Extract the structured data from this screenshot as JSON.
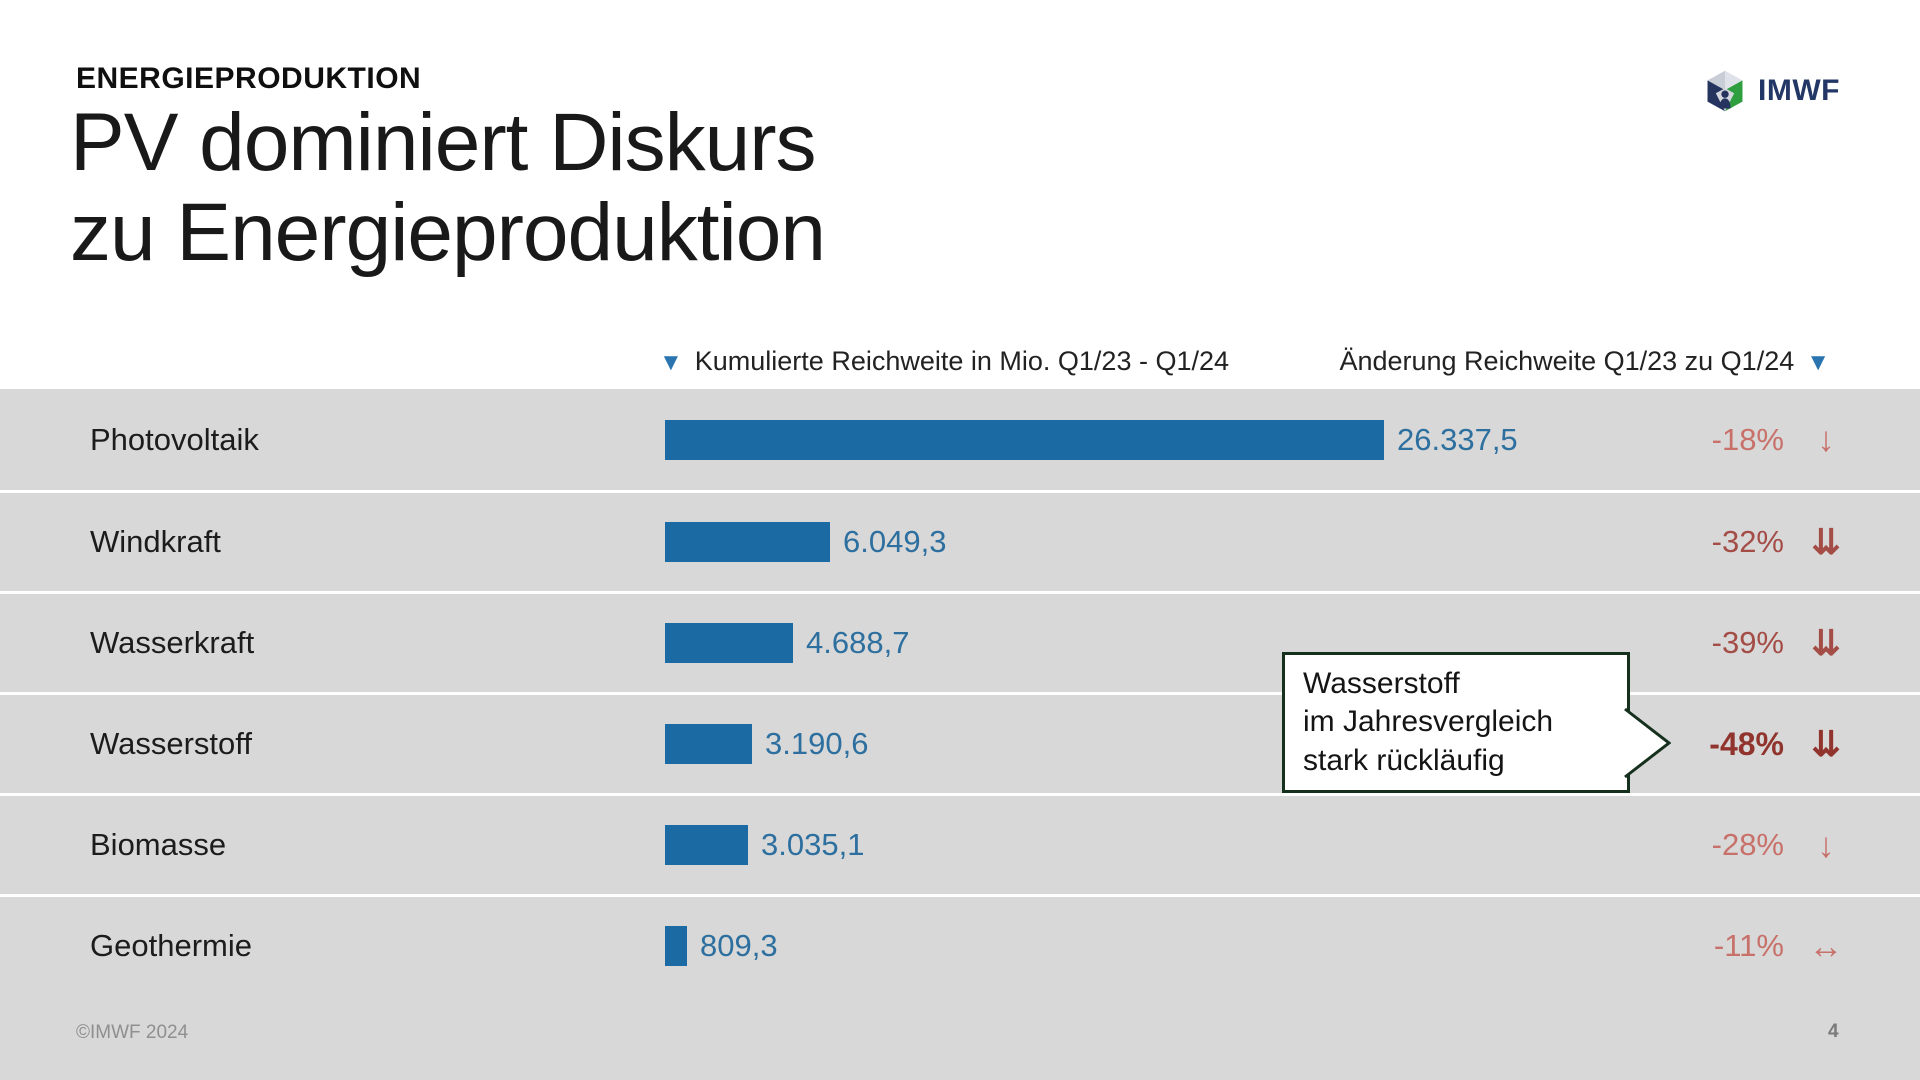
{
  "slide": {
    "kicker": "ENERGIEPRODUKTION",
    "title_line1": "PV dominiert Diskurs",
    "title_line2": "zu Energieproduktion",
    "logo_text": "IMWF",
    "footer_copyright": "©IMWF 2024",
    "page_number": "4"
  },
  "table_headers": {
    "left": "Kumulierte Reichweite in Mio. Q1/23 - Q1/24",
    "right": "Änderung Reichweite Q1/23 zu Q1/24"
  },
  "chart_data": {
    "type": "bar",
    "title": "PV dominiert Diskurs zu Energieproduktion",
    "orientation": "horizontal",
    "categories": [
      "Photovoltaik",
      "Windkraft",
      "Wasserkraft",
      "Wasserstoff",
      "Biomasse",
      "Geothermie"
    ],
    "values": [
      26337.5,
      6049.3,
      4688.7,
      3190.6,
      3035.1,
      809.3
    ],
    "value_labels": [
      "26.337,5",
      "6.049,3",
      "4.688,7",
      "3.190,6",
      "3.035,1",
      "809,3"
    ],
    "xlabel": "Kumulierte Reichweite in Mio. Q1/23 - Q1/24",
    "xlim": [
      0,
      26337.5
    ],
    "grid": false,
    "series2_label": "Änderung Reichweite Q1/23 zu Q1/24",
    "change_pct": [
      -18,
      -32,
      -39,
      -48,
      -28,
      -11
    ],
    "change_labels": [
      "-18%",
      "-32%",
      "-39%",
      "-48%",
      "-28%",
      "-11%"
    ],
    "trend_icons": [
      "down",
      "double-down",
      "double-down",
      "double-down",
      "down",
      "left-right"
    ],
    "tones": [
      "light",
      "dark",
      "dark",
      "strong",
      "light",
      "light"
    ],
    "emphasized_index": 3
  },
  "callout": {
    "lines": [
      "Wasserstoff",
      "im Jahresvergleich",
      "stark rückläufig"
    ]
  },
  "icons": {
    "sort-desc": "▼",
    "down": "↓",
    "double-down": "⇊",
    "left-right": "↔"
  },
  "colors": {
    "bar_blue": "#1c6aa3",
    "value_blue": "#2d6f9f",
    "tone_light": "#c8716a",
    "tone_dark": "#a44d47",
    "tone_strong": "#90342d",
    "panel_gray": "#d8d8d8",
    "callout_border": "#15301d",
    "header_triangle": "#2a74b0",
    "logo_navy": "#25335f",
    "logo_green": "#2f9e3f"
  }
}
